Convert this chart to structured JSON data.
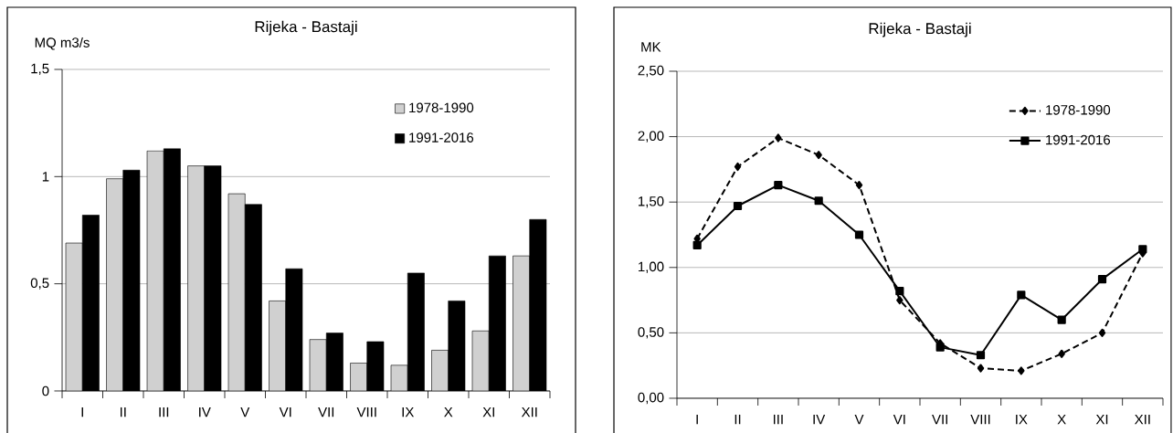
{
  "chart_data": [
    {
      "type": "bar",
      "title": "Rijeka - Bastaji",
      "ylabel": "MQ m3/s",
      "categories": [
        "I",
        "II",
        "III",
        "IV",
        "V",
        "VI",
        "VII",
        "VIII",
        "IX",
        "X",
        "XI",
        "XII"
      ],
      "series": [
        {
          "name": "1978-1990",
          "color": "#d0d0d0",
          "values": [
            0.69,
            0.99,
            1.12,
            1.05,
            0.92,
            0.42,
            0.24,
            0.13,
            0.12,
            0.19,
            0.28,
            0.63
          ]
        },
        {
          "name": "1991-2016",
          "color": "#000000",
          "values": [
            0.82,
            1.03,
            1.13,
            1.05,
            0.87,
            0.57,
            0.27,
            0.23,
            0.55,
            0.42,
            0.63,
            0.8
          ]
        }
      ],
      "ylim": [
        0,
        1.5
      ],
      "yticks": [
        0,
        {
          "value": 0.5,
          "label": "0,5"
        },
        1,
        {
          "value": 1.5,
          "label": "1,5"
        }
      ],
      "grid": "y",
      "legend": "top right"
    },
    {
      "type": "line",
      "title": "Rijeka - Bastaji",
      "ylabel": "MK",
      "categories": [
        "I",
        "II",
        "III",
        "IV",
        "V",
        "VI",
        "VII",
        "VIII",
        "IX",
        "X",
        "XI",
        "XII"
      ],
      "series": [
        {
          "name": "1978-1990",
          "color": "#000000",
          "line_style": "dashed",
          "marker": "diamond",
          "values": [
            1.22,
            1.77,
            1.99,
            1.86,
            1.63,
            0.75,
            0.42,
            0.23,
            0.21,
            0.34,
            0.5,
            1.11
          ]
        },
        {
          "name": "1991-2016",
          "color": "#000000",
          "line_style": "solid",
          "marker": "square",
          "values": [
            1.17,
            1.47,
            1.63,
            1.51,
            1.25,
            0.82,
            0.39,
            0.33,
            0.79,
            0.6,
            0.91,
            1.14
          ]
        }
      ],
      "ylim": [
        0,
        2.5
      ],
      "yticks": [
        {
          "value": 0,
          "label": "0,00"
        },
        {
          "value": 0.5,
          "label": "0,50"
        },
        {
          "value": 1,
          "label": "1,00"
        },
        {
          "value": 1.5,
          "label": "1,50"
        },
        {
          "value": 2,
          "label": "2,00"
        },
        {
          "value": 2.5,
          "label": "2,50"
        }
      ],
      "grid": "y",
      "legend": "top right"
    }
  ]
}
